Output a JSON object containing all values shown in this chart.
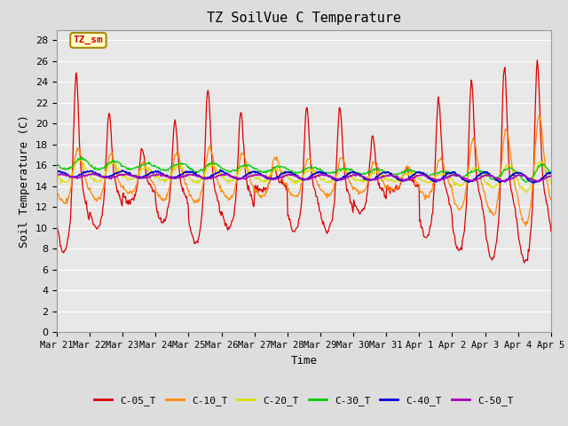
{
  "title": "TZ SoilVue C Temperature",
  "xlabel": "Time",
  "ylabel": "Soil Temperature (C)",
  "ylim": [
    0,
    29
  ],
  "yticks": [
    0,
    2,
    4,
    6,
    8,
    10,
    12,
    14,
    16,
    18,
    20,
    22,
    24,
    26,
    28
  ],
  "xtick_labels": [
    "Mar 21",
    "Mar 22",
    "Mar 23",
    "Mar 24",
    "Mar 25",
    "Mar 26",
    "Mar 27",
    "Mar 28",
    "Mar 29",
    "Mar 30",
    "Mar 31",
    "Apr 1",
    "Apr 2",
    "Apr 3",
    "Apr 4",
    "Apr 5"
  ],
  "annotation_text": "TZ_sm",
  "annotation_color": "#cc0000",
  "annotation_bg": "#ffffcc",
  "annotation_border": "#aa8800",
  "series_colors": {
    "C-05_T": "#dd0000",
    "C-10_T": "#ff8800",
    "C-20_T": "#dddd00",
    "C-30_T": "#00cc00",
    "C-40_T": "#0000dd",
    "C-50_T": "#aa00bb"
  },
  "background_color": "#dddddd",
  "plot_bg": "#e8e8e8",
  "grid_color": "#ffffff"
}
